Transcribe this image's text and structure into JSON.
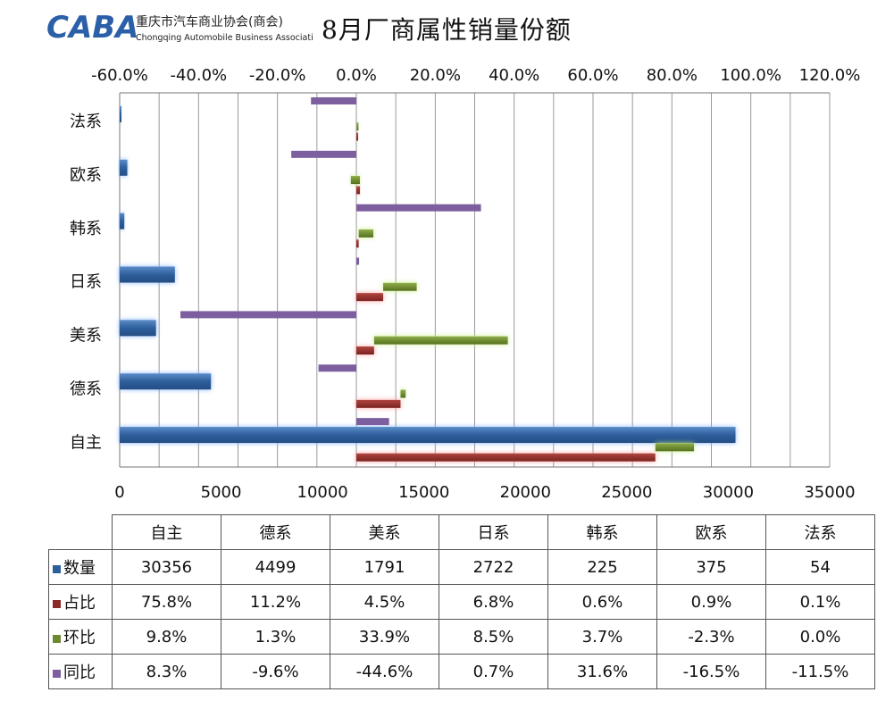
{
  "header": {
    "logo_text": "CABA",
    "org_name_cn": "重庆市汽车商业协会(商会)",
    "org_name_en": "Chongqing Automobile Business Association",
    "title": "8月厂商属性销量份额"
  },
  "colors": {
    "quantity": "#2e5f9c",
    "share": "#8b2a26",
    "mom": "#6d8a30",
    "yoy": "#7d5fa0",
    "logo": "#2b5fa8"
  },
  "chart_data": {
    "type": "bar",
    "orientation": "horizontal",
    "title": "8月厂商属性销量份额",
    "categories": [
      "自主",
      "德系",
      "美系",
      "日系",
      "韩系",
      "欧系",
      "法系"
    ],
    "series": [
      {
        "name": "数量",
        "axis": "bottom",
        "values": [
          30356,
          4499,
          1791,
          2722,
          225,
          375,
          54
        ]
      },
      {
        "name": "占比",
        "axis": "top",
        "values": [
          75.8,
          11.2,
          4.5,
          6.8,
          0.6,
          0.9,
          0.1
        ]
      },
      {
        "name": "环比",
        "axis": "top",
        "values": [
          9.8,
          1.3,
          33.9,
          8.5,
          3.7,
          -2.3,
          0.0
        ]
      },
      {
        "name": "同比",
        "axis": "top",
        "values": [
          8.3,
          -9.6,
          -44.6,
          0.7,
          31.6,
          -16.5,
          -11.5
        ]
      }
    ],
    "bottom_axis": {
      "range": [
        0,
        35000
      ],
      "ticks": [
        "0",
        "5000",
        "10000",
        "15000",
        "20000",
        "25000",
        "30000",
        "35000"
      ]
    },
    "top_axis": {
      "range": [
        -60,
        120
      ],
      "ticks": [
        "-60.0%",
        "-40.0%",
        "-20.0%",
        "0.0%",
        "20.0%",
        "40.0%",
        "60.0%",
        "80.0%",
        "100.0%",
        "120.0%"
      ]
    },
    "grid": true
  },
  "table": {
    "headers": [
      "自主",
      "德系",
      "美系",
      "日系",
      "韩系",
      "欧系",
      "法系"
    ],
    "rows": [
      {
        "label": "数量",
        "values": [
          "30356",
          "4499",
          "1791",
          "2722",
          "225",
          "375",
          "54"
        ]
      },
      {
        "label": "占比",
        "values": [
          "75.8%",
          "11.2%",
          "4.5%",
          "6.8%",
          "0.6%",
          "0.9%",
          "0.1%"
        ]
      },
      {
        "label": "环比",
        "values": [
          "9.8%",
          "1.3%",
          "33.9%",
          "8.5%",
          "3.7%",
          "-2.3%",
          "0.0%"
        ]
      },
      {
        "label": "同比",
        "values": [
          "8.3%",
          "-9.6%",
          "-44.6%",
          "0.7%",
          "31.6%",
          "-16.5%",
          "-11.5%"
        ]
      }
    ]
  }
}
